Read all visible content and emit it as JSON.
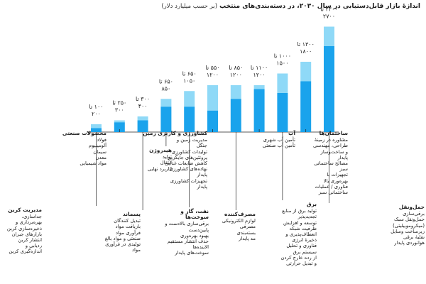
{
  "title": "اندازهٔ بازار قابل‌دستیابی در سال ۲۰۳۰، در دسته‌بندی‌های منتخب",
  "unit": "(بر حسب میلیارد دلار)",
  "colors": {
    "low": "#1aa3ec",
    "high": "#8fd9f7",
    "line": "#222222"
  },
  "categories": [
    {
      "title": "مدیریت کربن",
      "desc": "جداسازی،\nبهره‌برداری و\nذخیره‌سازی کربن\nبازارهای جبران\nانتشار کربن\nردیابی و\nاندازه‌گیری کربن"
    },
    {
      "title": "محصولات صنعتی",
      "desc": "فولاد\nآلومینیوم\nسیمان\nمعدن\nمواد شیمیایی"
    },
    {
      "title": "پسماند",
      "desc": "تبدیل کنندگان\nبازیافت مواد\nفرآوری مواد\nصنعتی و مواد بالغ\nتولیدی در فرآوری\nمواد"
    },
    {
      "title": "هیدروژن",
      "desc": "تولید\nانتقال\nکاربرد نهایی"
    },
    {
      "title": "نفت، گاز و سوخت‌ها",
      "desc": "برقی‌سازی بالادست و\nپایین‌دست\nبهبود بهره‌وری\nحذف انتشار مستقیم\nالاینده‌ها\nسوخت‌های پایدار"
    },
    {
      "title": "کشاورزی و کاربری زمین",
      "desc": "مدیریت زمین و\nجنگل\nتولیدات کشاورزی\nپروتئین‌های جایگزین\nکاهش ضایعات غذایی\nنهاده‌های کشاورزی\nپایدار\nتجهیزات کشاورزی\nپایدار"
    },
    {
      "title": "مصرف‌کننده",
      "desc": "لوازم الکترونیکی\nمصرفی\nبسته‌بندی\nمد پایدار"
    },
    {
      "title": "آب",
      "desc": "تأمین آب شهری\nتأمین آب صنعتی"
    },
    {
      "title": "برق",
      "desc": "تولید برق از منابع\nتجدیدپذیر\nتوسعه و افزایش\nظرفیت شبکه\nانعطاف‌پذیری و\nذخیرهٔ انرژی\nفناوری و تحلیل\nسیستم برق\nاز رده خارج کردن\nو تبدیل حرارتی"
    },
    {
      "title": "ساختمان‌ها",
      "desc": "مشاوره در زمینهٔ\nطراحی، مهندسی\nو ساخت‌وساز\nپایدار\nمصالح ساختمانی\nسبز\nتجهیزات با\nبهره‌وری بالا\nفناوری / عملیات\nساختمانی سبز"
    },
    {
      "title": "حمل‌ونقل",
      "desc": "برقی‌سازی\nحمل‌ونقل سبک\n(میکروموبیلیتی)\nزیرساخت وسایل\nنقلیهٔ برقی\nهوانوردی پایدار"
    }
  ],
  "chart_data": {
    "type": "bar",
    "subtype": "range",
    "title": "اندازهٔ بازار قابل‌دستیابی در سال ۲۰۳۰، در دسته‌بندی‌های منتخب",
    "unit": "(بر حسب میلیارد دلار)",
    "categories": [
      "مدیریت کربن",
      "محصولات صنعتی",
      "پسماند",
      "هیدروژن",
      "نفت، گاز و سوخت‌ها",
      "کشاورزی و کاربری زمین",
      "مصرف‌کننده",
      "آب",
      "برق",
      "ساختمان‌ها",
      "حمل‌ونقل"
    ],
    "low": [
      100,
      250,
      300,
      650,
      650,
      550,
      850,
      1100,
      1000,
      1300,
      2200
    ],
    "high": [
      200,
      300,
      400,
      850,
      1050,
      1200,
      1200,
      1200,
      1500,
      1800,
      2700
    ],
    "labels": [
      [
        "۱۰۰ تا",
        "۲۰۰"
      ],
      [
        "۲۵۰ تا",
        "۳۰۰"
      ],
      [
        "۳۰۰ تا",
        "۴۰۰"
      ],
      [
        "۶۵۰ تا",
        "۸۵۰"
      ],
      [
        "۶۵۰ تا",
        "۱۰۵۰"
      ],
      [
        "۵۵۰ تا",
        "۱۲۰۰"
      ],
      [
        "۸۵۰ تا",
        "۱۲۰۰"
      ],
      [
        "۱۱۰۰ تا",
        "۱۲۰۰"
      ],
      [
        "۱۰۰۰ تا",
        "۱۵۰۰"
      ],
      [
        "۱۳۰۰ تا",
        "۱۸۰۰"
      ],
      [
        "۲۲۰۰ تا",
        "۲۷۰۰"
      ]
    ],
    "legend": "none",
    "grid": false
  }
}
